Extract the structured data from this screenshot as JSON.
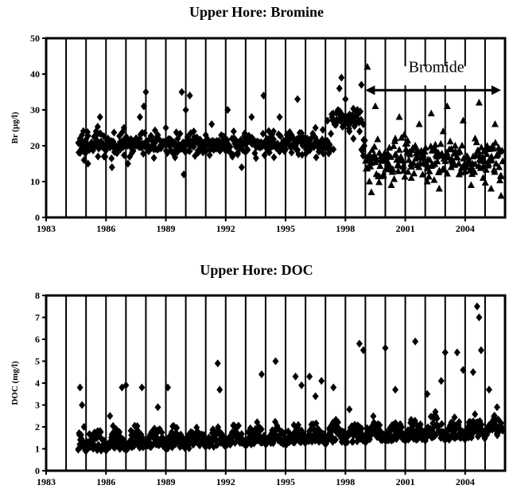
{
  "chart_data": [
    {
      "type": "scatter",
      "title": "Upper Hore: Bromine",
      "ylabel": "Br (µg/l)",
      "xlabel": "",
      "xlim": [
        1983,
        2006
      ],
      "ylim": [
        0,
        50
      ],
      "xticks": [
        "1983",
        "1986",
        "1989",
        "1992",
        "1995",
        "1998",
        "2001",
        "2004"
      ],
      "yticks": [
        "0",
        "10",
        "20",
        "30",
        "40",
        "50"
      ],
      "grid": "vertical lines each year",
      "annotation": {
        "text": "Bromide",
        "x_start": 1999.0,
        "x_end": 2005.8
      },
      "series": [
        {
          "name": "",
          "marker": "diamond",
          "x_start": 1984.6,
          "x_end": 1999.0,
          "points": [
            [
              1984.7,
              18
            ],
            [
              1984.8,
              23
            ],
            [
              1984.9,
              16
            ],
            [
              1985.1,
              15
            ],
            [
              1985.3,
              20
            ],
            [
              1985.5,
              24
            ],
            [
              1985.7,
              28
            ],
            [
              1985.9,
              17
            ],
            [
              1986.1,
              22
            ],
            [
              1986.3,
              14
            ],
            [
              1986.5,
              19
            ],
            [
              1986.7,
              21
            ],
            [
              1986.9,
              25
            ],
            [
              1987.1,
              15
            ],
            [
              1987.3,
              18
            ],
            [
              1987.5,
              20
            ],
            [
              1987.7,
              28
            ],
            [
              1987.9,
              31
            ],
            [
              1988.0,
              35
            ],
            [
              1988.2,
              22
            ],
            [
              1988.4,
              19
            ],
            [
              1988.6,
              23
            ],
            [
              1988.8,
              21
            ],
            [
              1989.0,
              25
            ],
            [
              1989.2,
              20
            ],
            [
              1989.4,
              18
            ],
            [
              1989.6,
              22
            ],
            [
              1989.8,
              35
            ],
            [
              1989.9,
              12
            ],
            [
              1990.0,
              30
            ],
            [
              1990.2,
              34
            ],
            [
              1990.4,
              24
            ],
            [
              1990.6,
              21
            ],
            [
              1990.8,
              19
            ],
            [
              1991.0,
              23
            ],
            [
              1991.3,
              26
            ],
            [
              1991.6,
              20
            ],
            [
              1991.9,
              22
            ],
            [
              1992.1,
              30
            ],
            [
              1992.4,
              24
            ],
            [
              1992.6,
              18
            ],
            [
              1992.8,
              14
            ],
            [
              1993.0,
              22
            ],
            [
              1993.3,
              28
            ],
            [
              1993.6,
              20
            ],
            [
              1993.9,
              34
            ],
            [
              1994.1,
              21
            ],
            [
              1994.4,
              24
            ],
            [
              1994.7,
              28
            ],
            [
              1995.0,
              19
            ],
            [
              1995.3,
              23
            ],
            [
              1995.6,
              33
            ],
            [
              1995.9,
              22
            ],
            [
              1996.2,
              21
            ],
            [
              1996.5,
              25
            ],
            [
              1996.8,
              20
            ],
            [
              1997.1,
              27
            ],
            [
              1997.4,
              19
            ],
            [
              1997.7,
              36
            ],
            [
              1997.8,
              39
            ],
            [
              1998.0,
              33
            ],
            [
              1998.2,
              24
            ],
            [
              1998.4,
              22
            ],
            [
              1998.6,
              30
            ],
            [
              1998.8,
              37
            ],
            [
              1998.9,
              26
            ]
          ]
        },
        {
          "name": "",
          "marker": "triangle",
          "x_start": 1999.0,
          "x_end": 2005.9,
          "points": [
            [
              1999.1,
              42
            ],
            [
              1999.2,
              10
            ],
            [
              1999.3,
              7
            ],
            [
              1999.5,
              31
            ],
            [
              1999.7,
              18
            ],
            [
              1999.9,
              12
            ],
            [
              2000.1,
              15
            ],
            [
              2000.3,
              9
            ],
            [
              2000.5,
              22
            ],
            [
              2000.7,
              28
            ],
            [
              2000.9,
              13
            ],
            [
              2001.1,
              18
            ],
            [
              2001.3,
              11
            ],
            [
              2001.5,
              20
            ],
            [
              2001.7,
              26
            ],
            [
              2001.9,
              15
            ],
            [
              2002.1,
              10
            ],
            [
              2002.3,
              29
            ],
            [
              2002.5,
              19
            ],
            [
              2002.7,
              8
            ],
            [
              2002.9,
              24
            ],
            [
              2003.1,
              31
            ],
            [
              2003.3,
              14
            ],
            [
              2003.5,
              20
            ],
            [
              2003.7,
              12
            ],
            [
              2003.9,
              27
            ],
            [
              2004.1,
              17
            ],
            [
              2004.3,
              9
            ],
            [
              2004.5,
              22
            ],
            [
              2004.7,
              32
            ],
            [
              2004.9,
              11
            ],
            [
              2005.1,
              19
            ],
            [
              2005.3,
              8
            ],
            [
              2005.5,
              26
            ],
            [
              2005.7,
              14
            ],
            [
              2005.8,
              6
            ]
          ]
        }
      ]
    },
    {
      "type": "scatter",
      "title": "Upper Hore: DOC",
      "ylabel": "DOC (mg/l)",
      "xlabel": "",
      "xlim": [
        1983,
        2006
      ],
      "ylim": [
        0,
        8
      ],
      "xticks": [
        "1983",
        "1986",
        "1989",
        "1992",
        "1995",
        "1998",
        "2001",
        "2004"
      ],
      "yticks": [
        "0",
        "1",
        "2",
        "3",
        "4",
        "5",
        "6",
        "7",
        "8"
      ],
      "grid": "vertical lines each year",
      "series": [
        {
          "name": "",
          "marker": "diamond",
          "x_start": 1984.6,
          "x_end": 2005.9,
          "points": [
            [
              1984.7,
              3.8
            ],
            [
              1984.8,
              3.0
            ],
            [
              1984.9,
              2.0
            ],
            [
              1986.2,
              2.5
            ],
            [
              1986.8,
              3.8
            ],
            [
              1987.0,
              3.9
            ],
            [
              1987.8,
              3.8
            ],
            [
              1988.6,
              2.9
            ],
            [
              1989.1,
              3.8
            ],
            [
              1991.6,
              4.9
            ],
            [
              1991.7,
              3.7
            ],
            [
              1993.8,
              4.4
            ],
            [
              1994.5,
              5.0
            ],
            [
              1995.5,
              4.3
            ],
            [
              1995.8,
              3.9
            ],
            [
              1996.2,
              4.3
            ],
            [
              1996.5,
              3.4
            ],
            [
              1996.8,
              4.1
            ],
            [
              1997.4,
              3.8
            ],
            [
              1998.2,
              2.8
            ],
            [
              1998.7,
              5.8
            ],
            [
              1998.9,
              5.5
            ],
            [
              2000.0,
              5.6
            ],
            [
              2000.5,
              3.7
            ],
            [
              2001.5,
              5.9
            ],
            [
              2002.1,
              3.5
            ],
            [
              2002.8,
              4.1
            ],
            [
              2003.0,
              5.4
            ],
            [
              2003.6,
              5.4
            ],
            [
              2003.9,
              4.6
            ],
            [
              2004.4,
              4.5
            ],
            [
              2004.6,
              7.5
            ],
            [
              2004.7,
              7.0
            ],
            [
              2004.8,
              5.5
            ],
            [
              2005.2,
              3.7
            ],
            [
              2005.6,
              2.9
            ]
          ]
        }
      ]
    }
  ]
}
